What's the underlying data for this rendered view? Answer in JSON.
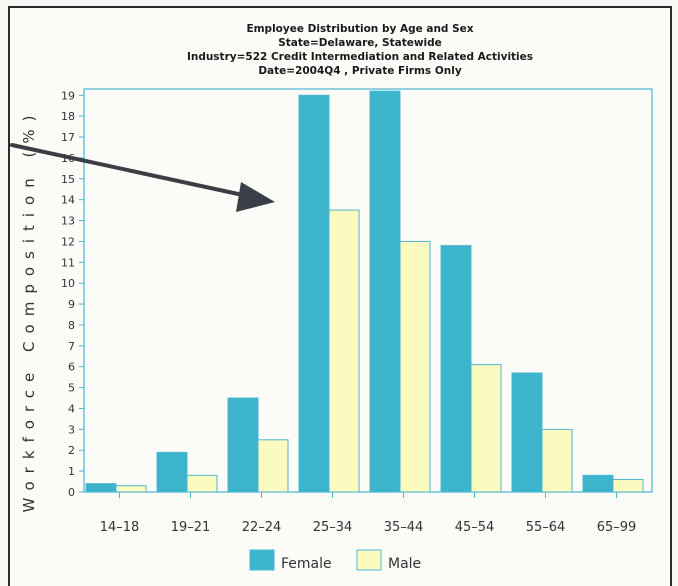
{
  "chart_data": {
    "type": "bar",
    "title": "Employee Distribution by Age and Sex",
    "subtitles": [
      "State=Delaware, Statewide",
      "Industry=522 Credit Intermediation and Related Activities",
      "Date=2004Q4 , Private Firms Only"
    ],
    "ylabel": "Workforce Composition (%)",
    "xlabel": "",
    "categories": [
      "14–18",
      "19–21",
      "22–24",
      "25–34",
      "35–44",
      "45–54",
      "55–64",
      "65–99"
    ],
    "series": [
      {
        "name": "Female",
        "color": "#3cb4cc",
        "values": [
          0.4,
          1.9,
          4.5,
          19.0,
          19.2,
          11.8,
          5.7,
          0.8
        ]
      },
      {
        "name": "Male",
        "color": "#fbfbc0",
        "values": [
          0.3,
          0.8,
          2.5,
          13.5,
          12.0,
          6.1,
          3.0,
          0.6
        ]
      }
    ],
    "ylim": [
      0,
      19.3
    ],
    "yticks": [
      0,
      1,
      2,
      3,
      4,
      5,
      6,
      7,
      8,
      9,
      10,
      11,
      12,
      13,
      14,
      15,
      16,
      17,
      18,
      19
    ],
    "legend_placement": "bottom",
    "grid": false
  },
  "colors": {
    "female": "#3cb4cc",
    "male": "#fbfbc0",
    "axis": "#4db6d0",
    "arrow": "#3a3f45"
  }
}
